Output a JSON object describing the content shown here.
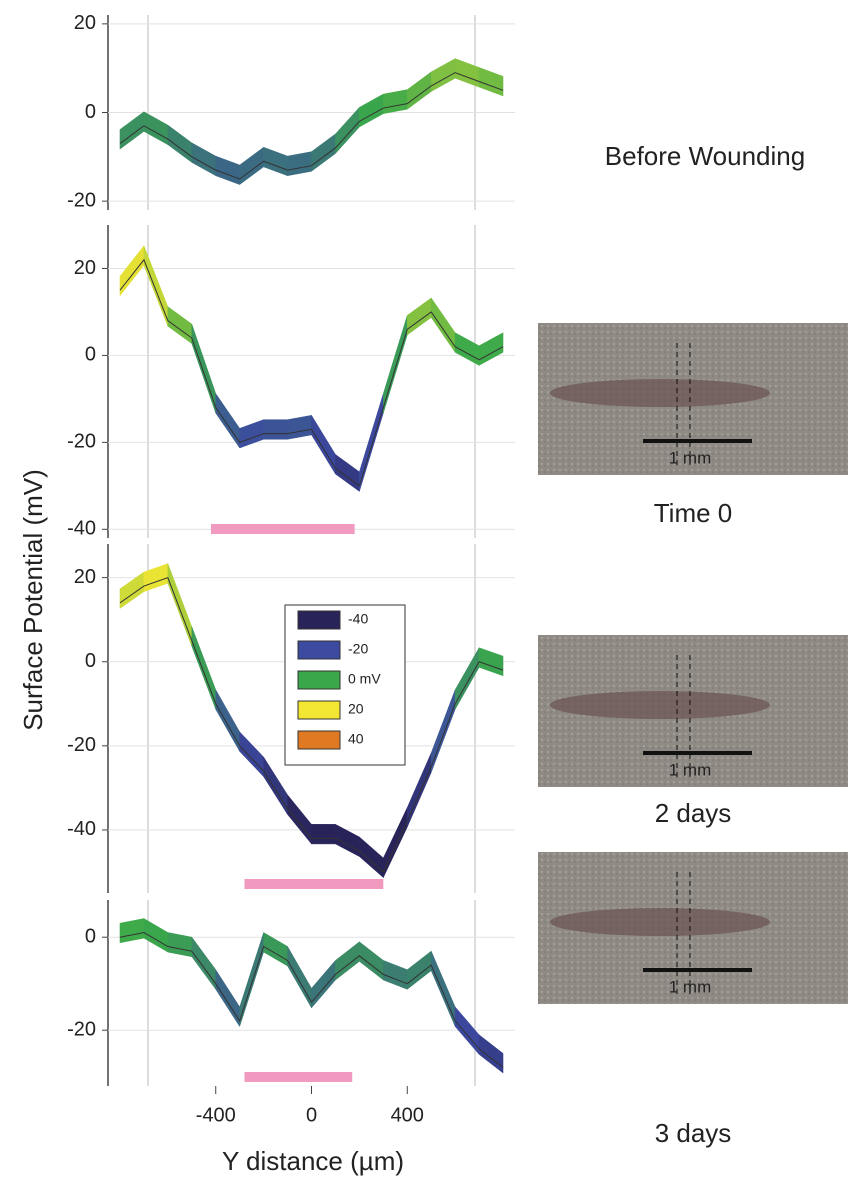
{
  "y_label": "Surface Potential (mV)",
  "colorbar": {
    "values": [
      -40,
      -20,
      0,
      20,
      40
    ],
    "labels": [
      "-40",
      "-20",
      "0 mV",
      "20",
      "40"
    ],
    "colors": [
      "#28245a",
      "#3c4aa0",
      "#3aa84a",
      "#f2e632",
      "#e07a22"
    ]
  },
  "chart_data": [
    {
      "type": "line",
      "title": "Before Wounding",
      "x": [
        -800,
        -700,
        -600,
        -500,
        -400,
        -300,
        -200,
        -100,
        0,
        100,
        200,
        300,
        400,
        500,
        600,
        700,
        800
      ],
      "values": [
        -7,
        -3,
        -6,
        -10,
        -13,
        -15,
        -11,
        -13,
        -12,
        -8,
        -2,
        1,
        2,
        6,
        9,
        7,
        5
      ],
      "xlim": [
        -850,
        850
      ],
      "ylim": [
        -22,
        22
      ],
      "yticks": [
        -20,
        0,
        20
      ]
    },
    {
      "type": "line",
      "title": "Time 0",
      "scale_label": "1 mm",
      "x": [
        -800,
        -700,
        -600,
        -500,
        -400,
        -300,
        -200,
        -100,
        0,
        100,
        200,
        300,
        400,
        500,
        600,
        700,
        800
      ],
      "values": [
        15,
        22,
        8,
        4,
        -12,
        -20,
        -18,
        -18,
        -17,
        -26,
        -30,
        -12,
        6,
        10,
        2,
        -1,
        2
      ],
      "xlim": [
        -850,
        850
      ],
      "ylim": [
        -42,
        30
      ],
      "yticks": [
        -40,
        -20,
        0,
        20
      ],
      "wound": [
        -420,
        180
      ]
    },
    {
      "type": "line",
      "title": "2 days",
      "scale_label": "1 mm",
      "x": [
        -800,
        -700,
        -600,
        -500,
        -400,
        -300,
        -200,
        -100,
        0,
        100,
        200,
        300,
        400,
        500,
        600,
        700,
        800
      ],
      "values": [
        14,
        18,
        20,
        5,
        -10,
        -20,
        -26,
        -35,
        -42,
        -42,
        -45,
        -50,
        -38,
        -25,
        -10,
        0,
        -2
      ],
      "xlim": [
        -850,
        850
      ],
      "ylim": [
        -55,
        28
      ],
      "yticks": [
        -40,
        -20,
        0,
        20
      ],
      "wound": [
        -280,
        300
      ]
    },
    {
      "type": "line",
      "title": "3 days",
      "scale_label": "1 mm",
      "x": [
        -800,
        -700,
        -600,
        -500,
        -400,
        -300,
        -200,
        -100,
        0,
        100,
        200,
        300,
        400,
        500,
        600,
        700,
        800
      ],
      "values": [
        0,
        1,
        -2,
        -3,
        -10,
        -18,
        -2,
        -5,
        -14,
        -8,
        -4,
        -8,
        -10,
        -6,
        -18,
        -24,
        -28
      ],
      "xlim": [
        -850,
        850
      ],
      "ylim": [
        -32,
        8
      ],
      "yticks": [
        -20,
        0
      ],
      "wound": [
        -280,
        170
      ],
      "xticks": [
        -400,
        0,
        400
      ],
      "x_label": "Y distance (µm)"
    }
  ]
}
